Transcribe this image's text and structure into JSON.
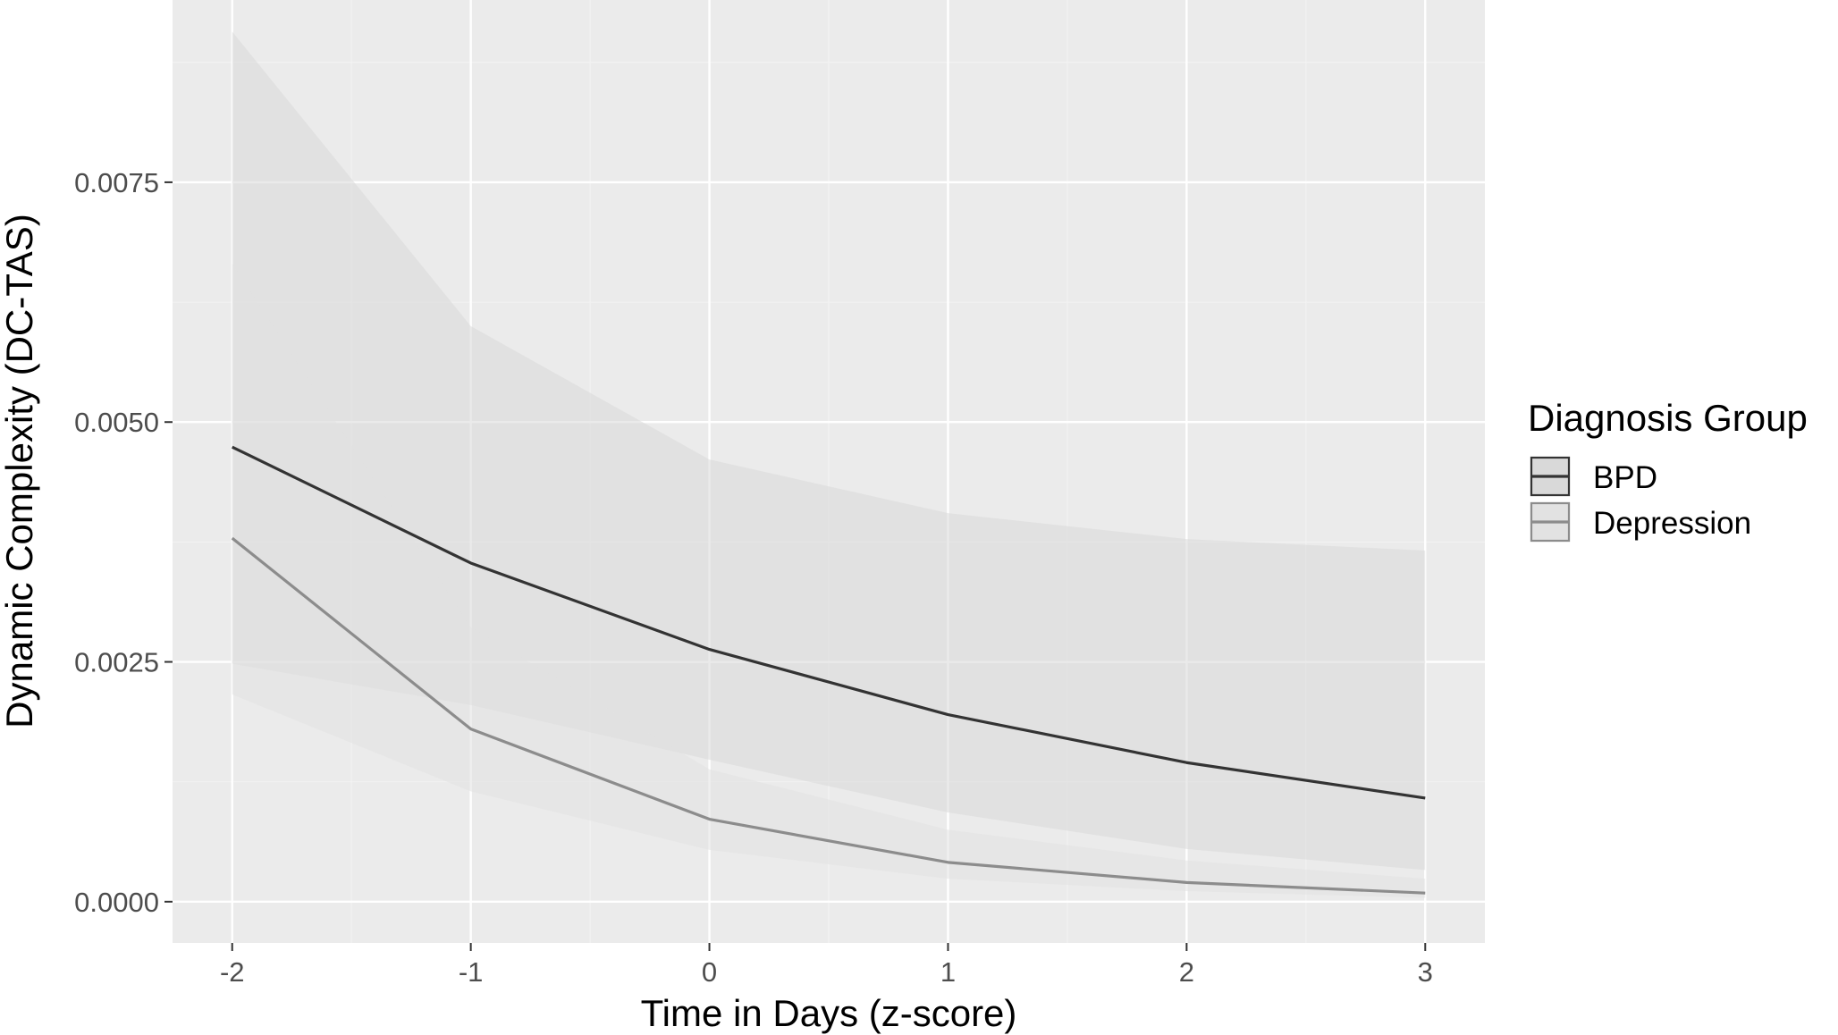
{
  "chart_data": {
    "type": "line",
    "xlabel": "Time in Days (z-score)",
    "ylabel": "Dynamic Complexity (DC-TAS)",
    "x": [
      -2,
      -1,
      0,
      1,
      2,
      3
    ],
    "xlim": [
      -2.25,
      3.25
    ],
    "ylim": [
      -0.00043,
      0.0094
    ],
    "x_ticks": [
      -2,
      -1,
      0,
      1,
      2,
      3
    ],
    "x_tick_labels": [
      "-2",
      "-1",
      "0",
      "1",
      "2",
      "3"
    ],
    "y_ticks": [
      0.0,
      0.0025,
      0.005,
      0.0075
    ],
    "y_tick_labels": [
      "0.0000",
      "0.0025",
      "0.0050",
      "0.0075"
    ],
    "grid": true,
    "legend": {
      "title": "Diagnosis Group",
      "position": "right"
    },
    "series": [
      {
        "name": "BPD",
        "color": "#333333",
        "values": [
          0.00474,
          0.00353,
          0.00263,
          0.00195,
          0.00145,
          0.00108
        ],
        "ci_lower": [
          0.00248,
          0.00205,
          0.00148,
          0.00093,
          0.00055,
          0.00033
        ],
        "ci_upper": [
          0.00907,
          0.006,
          0.00461,
          0.00405,
          0.00378,
          0.00366
        ],
        "ribbon_color": "#d9d9d9"
      },
      {
        "name": "Depression",
        "color": "#8c8c8c",
        "values": [
          0.00379,
          0.0018,
          0.00086,
          0.00041,
          0.0002,
          9e-05
        ],
        "ci_lower": [
          0.00216,
          0.00115,
          0.00054,
          0.00024,
          0.00011,
          4e-05
        ],
        "ci_upper": [
          0.00665,
          0.00286,
          0.00138,
          0.00075,
          0.00043,
          0.00024
        ],
        "ribbon_color": "#e2e2e2"
      }
    ],
    "colors": {
      "panel_background": "#ebebeb",
      "grid_major": "#ffffff",
      "grid_minor": "#f2f2f2",
      "tick_color": "#333333"
    }
  }
}
